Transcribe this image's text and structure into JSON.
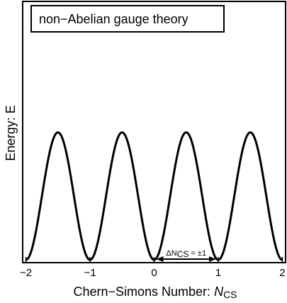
{
  "chart_data": {
    "type": "line",
    "title": "non−Abelian gauge theory",
    "xlabel_main": "Chern−Simons Number:  ",
    "xlabel_symbol": "N",
    "xlabel_sub": "CS",
    "ylabel": "Energy:  E",
    "xlim": [
      -2.05,
      2.05
    ],
    "ylim": [
      0,
      1.0
    ],
    "x_ticks": [
      -2,
      -1,
      0,
      1,
      2
    ],
    "x_tick_labels": [
      "−2",
      "−1",
      "0",
      "1",
      "2"
    ],
    "y_ticks_shown": false,
    "series": [
      {
        "function": "E = sin^2(pi * N_CS)",
        "x_range": [
          -2,
          2
        ],
        "peaks_at": [
          -1.5,
          -0.5,
          0.5,
          1.5
        ],
        "minima_at": [
          -2,
          -1,
          0,
          1,
          2
        ],
        "peak_value": 1.0,
        "min_value": 0.0,
        "color": "#000000"
      }
    ],
    "annotation": {
      "prefix": "ΔN",
      "sub": "CS",
      "suffix": " = ±1",
      "from": 0,
      "to": 1,
      "style": "double-arrow"
    }
  }
}
